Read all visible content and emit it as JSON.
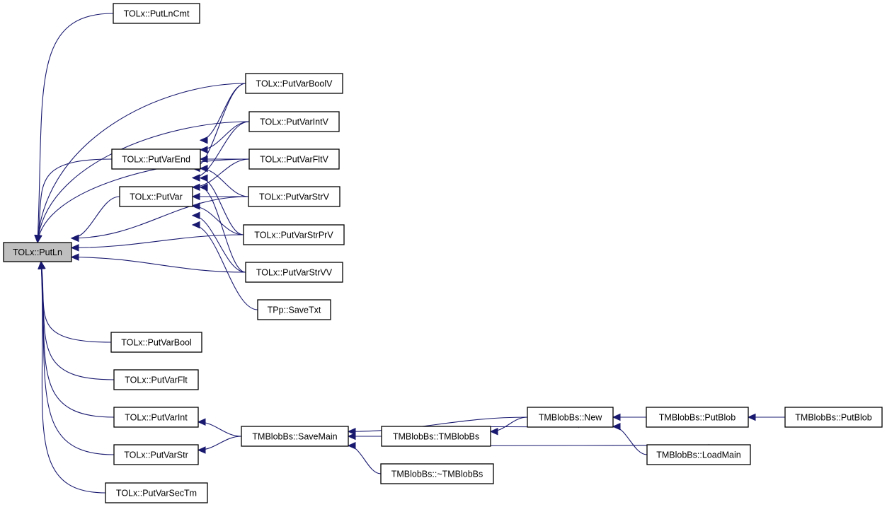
{
  "colors": {
    "edge": "#191970",
    "root_fill": "#bfbfbf",
    "node_fill": "#ffffff",
    "border": "#000000"
  },
  "root": "PutLn",
  "nodes": [
    {
      "id": "PutLn",
      "label": "TOLx::PutLn"
    },
    {
      "id": "PutLnCmt",
      "label": "TOLx::PutLnCmt"
    },
    {
      "id": "PutVarBoolV",
      "label": "TOLx::PutVarBoolV"
    },
    {
      "id": "PutVarIntV",
      "label": "TOLx::PutVarIntV"
    },
    {
      "id": "PutVarEnd",
      "label": "TOLx::PutVarEnd"
    },
    {
      "id": "PutVarFltV",
      "label": "TOLx::PutVarFltV"
    },
    {
      "id": "PutVar",
      "label": "TOLx::PutVar"
    },
    {
      "id": "PutVarStrV",
      "label": "TOLx::PutVarStrV"
    },
    {
      "id": "PutVarStrPrV",
      "label": "TOLx::PutVarStrPrV"
    },
    {
      "id": "PutVarStrVV",
      "label": "TOLx::PutVarStrVV"
    },
    {
      "id": "SaveTxt",
      "label": "TPp::SaveTxt"
    },
    {
      "id": "PutVarBool",
      "label": "TOLx::PutVarBool"
    },
    {
      "id": "PutVarFlt",
      "label": "TOLx::PutVarFlt"
    },
    {
      "id": "PutVarInt",
      "label": "TOLx::PutVarInt"
    },
    {
      "id": "PutVarStr",
      "label": "TOLx::PutVarStr"
    },
    {
      "id": "PutVarSecTm",
      "label": "TOLx::PutVarSecTm"
    },
    {
      "id": "SaveMain",
      "label": "TMBlobBs::SaveMain"
    },
    {
      "id": "TMBlobBs",
      "label": "TMBlobBs::TMBlobBs"
    },
    {
      "id": "DtorTMBlobBs",
      "label": "TMBlobBs::~TMBlobBs"
    },
    {
      "id": "New",
      "label": "TMBlobBs::New"
    },
    {
      "id": "PutBlobA",
      "label": "TMBlobBs::PutBlob"
    },
    {
      "id": "LoadMain",
      "label": "TMBlobBs::LoadMain"
    },
    {
      "id": "PutBlobB",
      "label": "TMBlobBs::PutBlob"
    }
  ],
  "edges": [
    [
      "PutLnCmt",
      "PutLn"
    ],
    [
      "PutVarBoolV",
      "PutLn"
    ],
    [
      "PutVarIntV",
      "PutLn"
    ],
    [
      "PutVarFltV",
      "PutLn"
    ],
    [
      "PutVarEnd",
      "PutLn"
    ],
    [
      "PutVar",
      "PutLn"
    ],
    [
      "PutVarStrV",
      "PutLn"
    ],
    [
      "PutVarStrPrV",
      "PutLn"
    ],
    [
      "PutVarStrVV",
      "PutLn"
    ],
    [
      "PutVarBool",
      "PutLn"
    ],
    [
      "PutVarFlt",
      "PutLn"
    ],
    [
      "PutVarInt",
      "PutLn"
    ],
    [
      "PutVarStr",
      "PutLn"
    ],
    [
      "PutVarSecTm",
      "PutLn"
    ],
    [
      "PutVarBoolV",
      "PutVarEnd"
    ],
    [
      "PutVarIntV",
      "PutVarEnd"
    ],
    [
      "PutVarFltV",
      "PutVarEnd"
    ],
    [
      "PutVarStrV",
      "PutVarEnd"
    ],
    [
      "PutVarStrPrV",
      "PutVarEnd"
    ],
    [
      "PutVarStrVV",
      "PutVarEnd"
    ],
    [
      "PutVarBoolV",
      "PutVar"
    ],
    [
      "PutVarIntV",
      "PutVar"
    ],
    [
      "PutVarFltV",
      "PutVar"
    ],
    [
      "PutVarStrV",
      "PutVar"
    ],
    [
      "PutVarStrPrV",
      "PutVar"
    ],
    [
      "PutVarStrVV",
      "PutVar"
    ],
    [
      "SaveTxt",
      "PutVar"
    ],
    [
      "SaveMain",
      "PutVarInt"
    ],
    [
      "SaveMain",
      "PutVarStr"
    ],
    [
      "TMBlobBs",
      "SaveMain"
    ],
    [
      "DtorTMBlobBs",
      "SaveMain"
    ],
    [
      "New",
      "SaveMain"
    ],
    [
      "New",
      "TMBlobBs"
    ],
    [
      "TMBlobBs",
      "New"
    ],
    [
      "PutBlobA",
      "New"
    ],
    [
      "LoadMain",
      "New"
    ],
    [
      "PutBlobB",
      "PutBlobA"
    ],
    [
      "TMBlobBs",
      "LoadMain"
    ]
  ]
}
